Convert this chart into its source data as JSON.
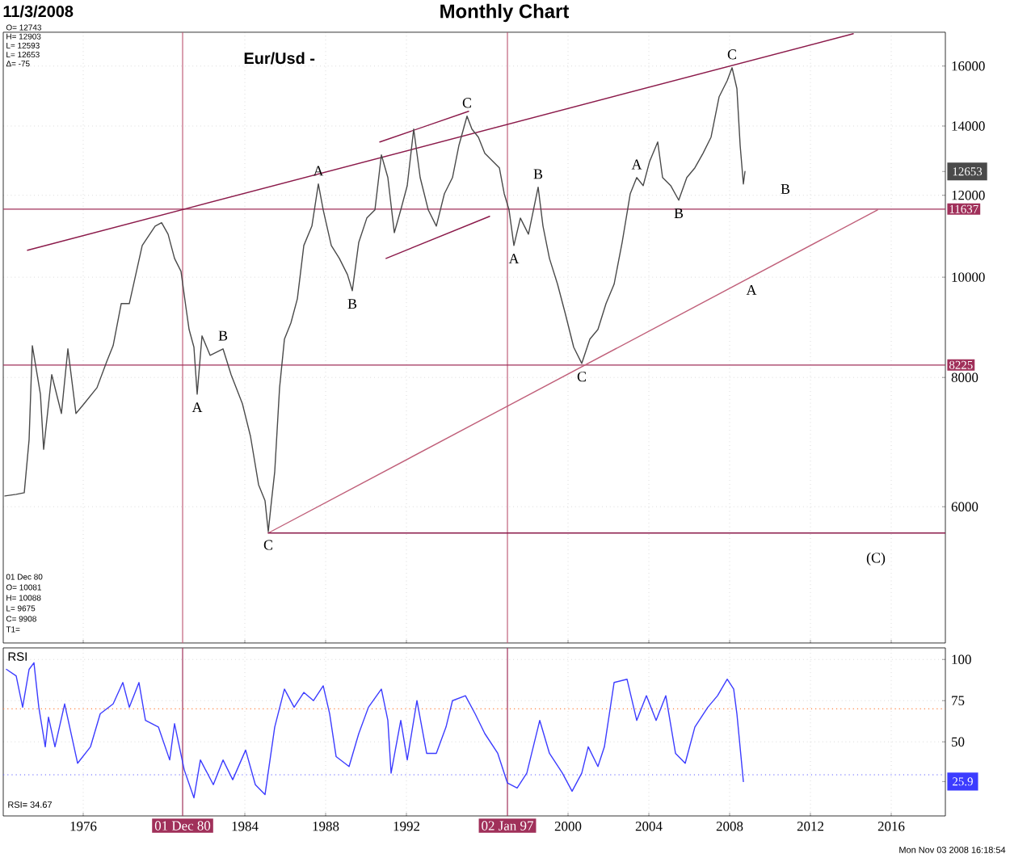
{
  "chart_data": [
    {
      "type": "line",
      "title": "Monthly Chart",
      "subtitle": "11/3/2008",
      "xlim": [
        1972.04,
        2018.68
      ],
      "ylim": [
        4430,
        17250
      ],
      "log": "y",
      "grid": true,
      "tick_labels": "y",
      "xticks": [
        1976,
        1984,
        1988,
        1992,
        2000,
        2004,
        2008,
        2012,
        2016
      ],
      "yticks": [
        6000,
        8000,
        10000,
        12000,
        14000,
        16000,
        {
          "value": 12653,
          "label": "12653"
        }
      ],
      "series": [
        {
          "color": "#4a4a4a",
          "x": [
            1972.12,
            1972.68,
            1973.08,
            1973.32,
            1973.48,
            1973.88,
            1974.04,
            1974.44,
            1974.92,
            1975.24,
            1975.64,
            1976.04,
            1976.68,
            1977.16,
            1977.48,
            1977.88,
            1978.28,
            1978.92,
            1979.56,
            1979.88,
            1980.2,
            1980.52,
            1980.84,
            1981.08,
            1981.24,
            1981.48,
            1981.64,
            1981.88,
            1982.28,
            1982.92,
            1983.32,
            1983.88,
            1984.28,
            1984.68,
            1985.0,
            1985.16,
            1985.32,
            1985.48,
            1985.72,
            1985.96,
            1986.28,
            1986.6,
            1986.92,
            1987.32,
            1987.64,
            1987.88,
            1988.28,
            1988.68,
            1989.08,
            1989.32,
            1989.64,
            1990.04,
            1990.44,
            1990.76,
            1991.08,
            1991.4,
            1991.72,
            1992.04,
            1992.36,
            1992.68,
            1993.08,
            1993.48,
            1993.88,
            1994.28,
            1994.6,
            1995.0,
            1995.24,
            1995.56,
            1995.88,
            1996.28,
            1996.6,
            1996.84,
            1997.08,
            1997.32,
            1997.64,
            1998.04,
            1998.52,
            1998.76,
            1999.08,
            1999.48,
            1999.88,
            2000.28,
            2000.68,
            2001.08,
            2001.48,
            2001.88,
            2002.28,
            2002.68,
            2003.08,
            2003.4,
            2003.72,
            2004.04,
            2004.44,
            2004.68,
            2005.08,
            2005.48,
            2005.88,
            2006.28,
            2006.68,
            2007.08,
            2007.48,
            2007.88,
            2008.12,
            2008.36,
            2008.52,
            2008.68,
            2008.76
          ],
          "values": [
            6146,
            6168,
            6190,
            6968,
            8587,
            7710,
            6819,
            8050,
            7384,
            8526,
            7384,
            7546,
            7821,
            8285,
            8587,
            9429,
            9429,
            10731,
            11205,
            11290,
            11005,
            10427,
            10131,
            9362,
            8902,
            8557,
            7710,
            8776,
            8405,
            8526,
            8050,
            7546,
            7019,
            6301,
            6080,
            5675,
            6080,
            6486,
            7821,
            8712,
            9032,
            9531,
            10731,
            11205,
            12306,
            11616,
            10731,
            10427,
            10059,
            9704,
            10808,
            11408,
            11616,
            13128,
            12483,
            11043,
            11616,
            12262,
            13907,
            12483,
            11616,
            11205,
            12043,
            12483,
            13415,
            14312,
            13907,
            13659,
            13174,
            12942,
            12757,
            12043,
            11616,
            10731,
            11408,
            11005,
            12218,
            11205,
            10427,
            9845,
            9195,
            8557,
            8254,
            8712,
            8902,
            9429,
            9845,
            10808,
            12043,
            12483,
            12262,
            12942,
            13512,
            12483,
            12262,
            11870,
            12483,
            12757,
            13174,
            13659,
            14944,
            15490,
            15942,
            15215,
            13415,
            12306,
            12653
          ]
        },
        {
          "color": "#8b1a4a",
          "x": [
            1973.24,
            2014.12
          ],
          "values": [
            10618,
            17194
          ]
        },
        {
          "color": "#8b1a4a",
          "x": [
            1990.68,
            1995.08
          ],
          "values": [
            13512,
            14467
          ]
        },
        {
          "color": "#8b1a4a",
          "x": [
            1990.99,
            1996.12
          ],
          "values": [
            10427,
            11451
          ]
        },
        {
          "color": "#c0607a",
          "x": [
            1985.16,
            2015.32
          ],
          "values": [
            5659,
            11616
          ]
        },
        {
          "color": "#8b1a4a",
          "x": [
            1985.16,
            2018.68
          ],
          "values": [
            5659,
            5659
          ]
        }
      ],
      "ref_lines": [
        {
          "axis": "x",
          "value": 1980.92,
          "color": "#c0607a"
        },
        {
          "axis": "x",
          "value": 1997.0,
          "color": "#c0607a"
        },
        {
          "axis": "y",
          "value": 11637,
          "label": "11637",
          "color": "#a0305a"
        },
        {
          "axis": "y",
          "value": 8225,
          "label": "8225",
          "color": "#a0305a"
        }
      ],
      "annotations": [
        "Eur/Usd  -",
        "O=    12743",
        "H=    12903",
        "L=    12593",
        "L=    12653",
        "Δ=       -75",
        "01 Dec 80",
        "O=    10081",
        "H=    10088",
        "L=      9675",
        "C=      9908",
        "T1=",
        "Mon Nov 03 2008 16:18:54",
        "B",
        "(C)",
        {
          "text": "A",
          "x": 1987.64,
          "y": 12306
        },
        {
          "text": "B",
          "x": 1989.32,
          "y": 9704
        },
        {
          "text": "C",
          "x": 1995.0,
          "y": 14312
        },
        {
          "text": "A",
          "x": 1981.64,
          "y": 7710
        },
        {
          "text": "B",
          "x": 1982.92,
          "y": 8526
        },
        {
          "text": "C",
          "x": 1985.16,
          "y": 5675
        },
        {
          "text": "B",
          "x": 1998.52,
          "y": 12218
        },
        {
          "text": "A",
          "x": 1997.32,
          "y": 10731
        },
        {
          "text": "A",
          "x": 2003.4,
          "y": 12483
        },
        {
          "text": "B",
          "x": 2005.48,
          "y": 11870
        },
        {
          "text": "C",
          "x": 2008.12,
          "y": 15942
        },
        {
          "text": "A",
          "x": 2009.08,
          "y": 10010
        },
        {
          "text": "C",
          "x": 2000.68,
          "y": 8254
        }
      ]
    },
    {
      "type": "line",
      "title": "RSI",
      "xlim": [
        1972.04,
        2018.68
      ],
      "ylim": [
        5,
        107
      ],
      "grid": true,
      "xticks": [
        1976,
        1984,
        1988,
        1992,
        2000,
        2004,
        2008,
        2012,
        2016
      ],
      "yticks": [
        100,
        75,
        50,
        {
          "value": 25.9,
          "label": "25.9"
        }
      ],
      "series": [
        {
          "color": "#3c3cff",
          "x": [
            1972.2,
            1972.68,
            1973.0,
            1973.32,
            1973.56,
            1973.8,
            1974.12,
            1974.28,
            1974.6,
            1975.08,
            1975.72,
            1976.36,
            1976.84,
            1977.48,
            1977.96,
            1978.28,
            1978.76,
            1979.08,
            1979.72,
            1980.28,
            1980.52,
            1981.0,
            1981.48,
            1981.8,
            1982.44,
            1982.92,
            1983.4,
            1984.04,
            1984.52,
            1985.0,
            1985.48,
            1985.96,
            1986.44,
            1986.92,
            1987.4,
            1987.88,
            1988.2,
            1988.52,
            1989.16,
            1989.64,
            1990.12,
            1990.76,
            1991.08,
            1991.24,
            1991.72,
            1992.04,
            1992.52,
            1993.0,
            1993.48,
            1993.96,
            1994.28,
            1994.92,
            1995.4,
            1995.88,
            1996.52,
            1997.0,
            1997.48,
            1997.96,
            1998.6,
            1999.08,
            1999.72,
            2000.2,
            2000.68,
            2001.0,
            2001.48,
            2001.8,
            2002.28,
            2002.92,
            2003.4,
            2003.88,
            2004.36,
            2004.84,
            2005.32,
            2005.8,
            2006.28,
            2006.92,
            2007.4,
            2007.88,
            2008.2,
            2008.36,
            2008.68
          ],
          "values": [
            94,
            90,
            71,
            94,
            98,
            71,
            47,
            65,
            47,
            73,
            37,
            47,
            67,
            73,
            86,
            71,
            86,
            63,
            59,
            39,
            61,
            33,
            16,
            39,
            24,
            39,
            27,
            45,
            24,
            18,
            59,
            82,
            71,
            80,
            75,
            84,
            67,
            41,
            35,
            55,
            71,
            82,
            63,
            31,
            63,
            39,
            75,
            43,
            43,
            59,
            75,
            78,
            67,
            55,
            43,
            25,
            22,
            31,
            63,
            43,
            31,
            20,
            31,
            47,
            35,
            47,
            86,
            88,
            63,
            78,
            63,
            78,
            43,
            37,
            59,
            71,
            78,
            88,
            82,
            67,
            25.9
          ]
        }
      ],
      "ref_lines": [
        {
          "axis": "x",
          "value": 1980.92,
          "label": "01 Dec 80",
          "color": "#a0305a"
        },
        {
          "axis": "x",
          "value": 1997.0,
          "label": "02 Jan 97",
          "color": "#a0305a"
        },
        {
          "axis": "y",
          "value": 70,
          "color": "#ff8040",
          "line_style": "dotted"
        },
        {
          "axis": "y",
          "value": 30,
          "color": "#6060ff",
          "line_style": "dotted"
        }
      ],
      "annotations": [
        "RSI= 34.67"
      ]
    }
  ]
}
